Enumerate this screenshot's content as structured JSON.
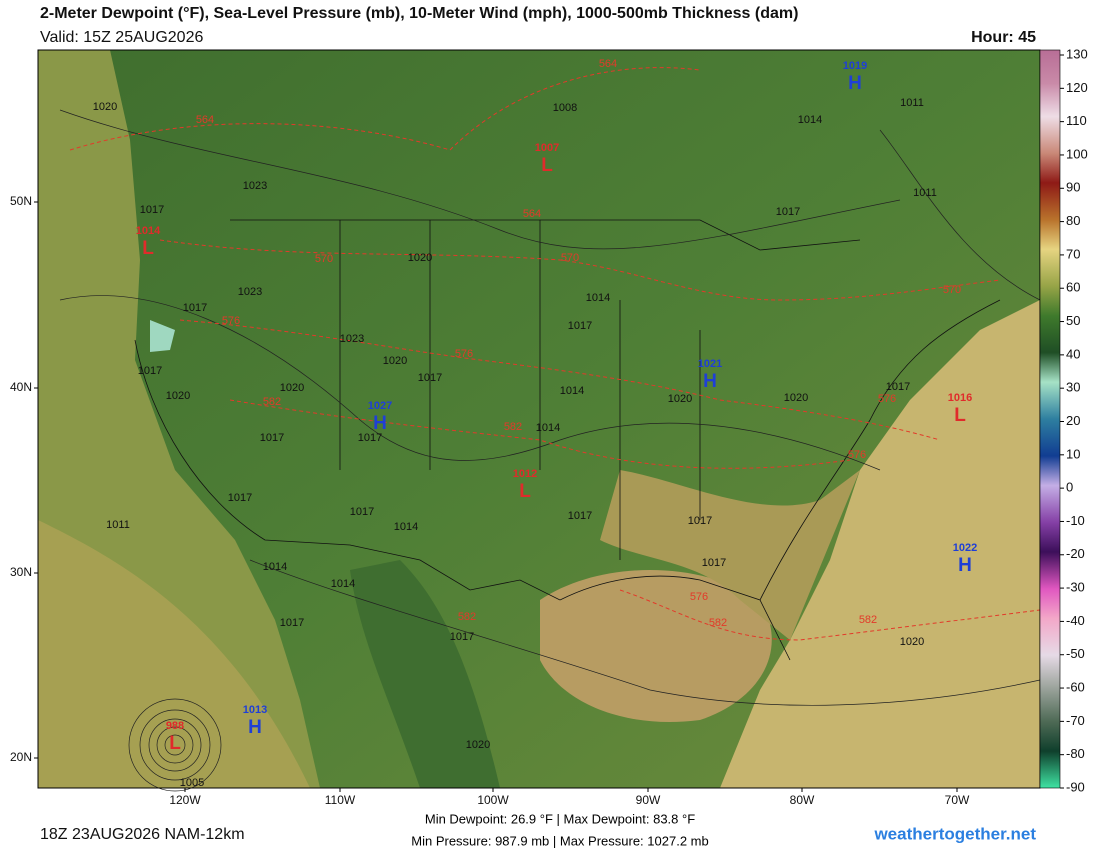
{
  "header": {
    "title": "2-Meter Dewpoint (°F), Sea-Level Pressure (mb), 10-Meter Wind (mph), 1000-500mb Thickness (dam)",
    "valid": "Valid: 15Z 25AUG2026",
    "hour": "Hour: 45"
  },
  "colorbar": {
    "ticks": [
      130,
      120,
      110,
      100,
      90,
      80,
      70,
      60,
      50,
      40,
      30,
      20,
      10,
      0,
      -10,
      -20,
      -30,
      -40,
      -50,
      -60,
      -70,
      -80,
      -90
    ]
  },
  "axes": {
    "lat_labels": [
      "50N",
      "40N",
      "30N",
      "20N"
    ],
    "lon_labels": [
      "120W",
      "110W",
      "100W",
      "90W",
      "80W",
      "70W"
    ]
  },
  "centers": [
    {
      "letter": "H",
      "value": "1019"
    },
    {
      "letter": "L",
      "value": "1007"
    },
    {
      "letter": "L",
      "value": "1014"
    },
    {
      "letter": "H",
      "value": "1021"
    },
    {
      "letter": "H",
      "value": "1027"
    },
    {
      "letter": "L",
      "value": "1012"
    },
    {
      "letter": "L",
      "value": "1016"
    },
    {
      "letter": "H",
      "value": "1022"
    },
    {
      "letter": "H",
      "value": "1013"
    },
    {
      "letter": "L",
      "value": "988"
    }
  ],
  "isobar_labels": [
    "1020",
    "1008",
    "1014",
    "1011",
    "1023",
    "1017",
    "1011",
    "1017",
    "1020",
    "1014",
    "1017",
    "1017",
    "1023",
    "1023",
    "1020",
    "1017",
    "1020",
    "1020",
    "1017",
    "1014",
    "1020",
    "1017",
    "1014",
    "1017",
    "1017",
    "1017",
    "1017",
    "1014",
    "1017",
    "1011",
    "1014",
    "1014",
    "1017",
    "1017",
    "1017",
    "1020",
    "1017",
    "1005",
    "1020",
    "1020"
  ],
  "thickness_labels": [
    "564",
    "564",
    "564",
    "570",
    "570",
    "576",
    "576",
    "582",
    "582",
    "582",
    "570",
    "576",
    "576",
    "576",
    "582",
    "582"
  ],
  "footer": {
    "run": "18Z 23AUG2026 NAM-12km",
    "dewpoint": "Min Dewpoint: 26.9 °F | Max Dewpoint: 83.8 °F",
    "pressure": "Min Pressure: 987.9 mb | Max Pressure: 1027.2 mb",
    "site": "weathertogether.net"
  }
}
